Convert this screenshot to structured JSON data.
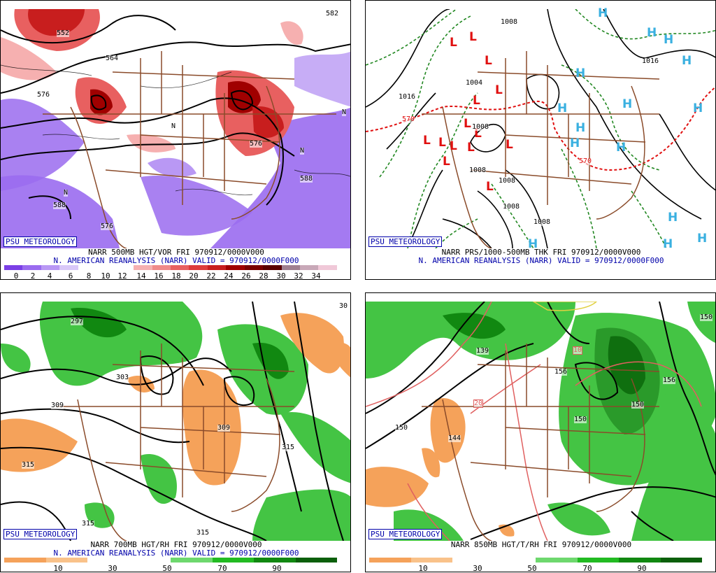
{
  "panels": [
    {
      "psu": "PSU METEOROLOGY",
      "line1": "NARR 500MB HGT/VOR FRI 970912/0000V000",
      "line2": "N. AMERICAN REANALYSIS (NARR) VALID = 970912/0000F000",
      "ticks": [
        "0",
        "2",
        "4",
        "6",
        "8",
        "10",
        "12",
        "14",
        "16",
        "18",
        "20",
        "22",
        "24",
        "26",
        "28",
        "30",
        "32",
        "34"
      ],
      "contour_labels": [
        "552",
        "564",
        "576",
        "576",
        "588",
        "588",
        "582",
        "576",
        "N"
      ]
    },
    {
      "psu": "PSU METEOROLOGY",
      "line1": "NARR PRS/1000-500MB THK FRI 970912/0000V000",
      "line2": "N. AMERICAN REANALYSIS (NARR) VALID = 970912/0000F000",
      "contour_labels": [
        "1008",
        "1016",
        "1016",
        "1004",
        "1008",
        "1008",
        "1008",
        "1008",
        "1008",
        "570",
        "570"
      ]
    },
    {
      "psu": "PSU METEOROLOGY",
      "line1": "NARR 700MB HGT/RH FRI 970912/0000V000",
      "line2": "N. AMERICAN REANALYSIS (NARR) VALID = 970912/0000F000",
      "ticks": [
        "10",
        "30",
        "50",
        "70",
        "90"
      ],
      "contour_labels": [
        "297",
        "303",
        "309",
        "309",
        "315",
        "315",
        "315",
        "315",
        "30"
      ]
    },
    {
      "psu": "PSU METEOROLOGY",
      "line1": "NARR 850MB HGT/T/RH FRI 970912/0000V000",
      "ticks": [
        "10",
        "30",
        "50",
        "70",
        "90"
      ],
      "contour_labels": [
        "139",
        "150",
        "144",
        "150",
        "150",
        "156",
        "150",
        "156",
        "10",
        "20"
      ]
    }
  ],
  "colors": {
    "vor": [
      "#7b3fe6",
      "#9a6bef",
      "#b998f4",
      "#d9c8f8",
      "#ffffff",
      "#ffffff",
      "#ffffff",
      "#f6b0b0",
      "#ef8a8a",
      "#e86060",
      "#de3c3c",
      "#c81e1e",
      "#a00000",
      "#7a0000",
      "#5a0000",
      "#a08090",
      "#c8a8b8",
      "#f0c8d8"
    ],
    "rh": [
      "#f5a25a",
      "#f9c28a",
      "#ffffff",
      "#ffffff",
      "#6ed86e",
      "#22bb22",
      "#118811",
      "#0b5f0b"
    ],
    "high": "#3ab0e0",
    "low": "#e01010",
    "borders": "#8a4b2a"
  }
}
